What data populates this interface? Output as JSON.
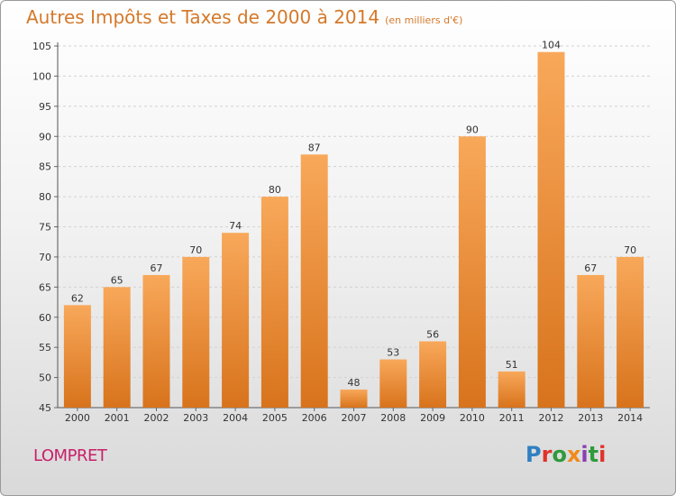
{
  "header": {
    "title": "Autres Impôts et Taxes de 2000 à 2014",
    "subtitle": "(en milliers d'€)"
  },
  "footer": {
    "city": "LOMPRET",
    "logo_text": "Proxiti"
  },
  "colors": {
    "bar_light": "#f8a85a",
    "bar_dark": "#d8731c",
    "title": "#d4792a",
    "city": "#c8206a"
  },
  "chart_data": {
    "type": "bar",
    "title": "Autres Impôts et Taxes de 2000 à 2014",
    "subtitle": "(en milliers d'€)",
    "categories": [
      "2000",
      "2001",
      "2002",
      "2003",
      "2004",
      "2005",
      "2006",
      "2007",
      "2008",
      "2009",
      "2010",
      "2011",
      "2012",
      "2013",
      "2014"
    ],
    "values": [
      62,
      65,
      67,
      70,
      74,
      80,
      87,
      48,
      53,
      56,
      90,
      51,
      104,
      67,
      70
    ],
    "ylim": [
      45,
      105
    ],
    "yticks": [
      45,
      50,
      55,
      60,
      65,
      70,
      75,
      80,
      85,
      90,
      95,
      100,
      105
    ],
    "grid": true,
    "data_labels": true
  }
}
